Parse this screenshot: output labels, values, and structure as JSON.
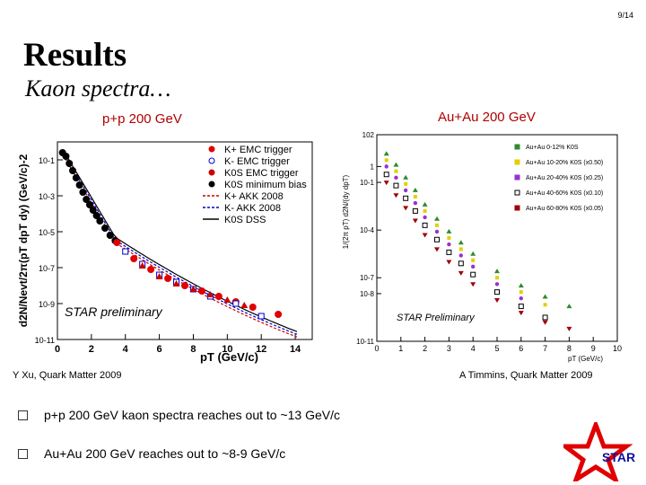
{
  "slide": {
    "page": "9/14",
    "title": "Results",
    "subtitle": "Kaon spectra…",
    "left_plot_title": "p+p 200 GeV",
    "right_plot_title": "Au+Au 200 GeV",
    "left_citation": "Y Xu, Quark Matter 2009",
    "right_citation": "A Timmins, Quark Matter 2009",
    "bullets": [
      "p+p 200 GeV kaon spectra reaches out to ~13 GeV/c",
      "Au+Au 200 GeV reaches out to ~8-9 GeV/c"
    ],
    "logo_text": "STAR"
  },
  "chart_data": [
    {
      "type": "scatter",
      "title": "p+p 200 GeV",
      "xlabel": "pT (GeV/c)",
      "ylabel": "d2N/Nevt/2π(pT dpT dy) (GeV/c)-2",
      "xlim": [
        0,
        15
      ],
      "ylim_log10": [
        -11,
        0
      ],
      "xticks": [
        "0",
        "2",
        "4",
        "6",
        "8",
        "10",
        "12",
        "14"
      ],
      "yticks": [
        "10-11",
        "10-9",
        "10-7",
        "10-5",
        "10-3",
        "10-1"
      ],
      "annotation": "STAR preliminary",
      "legend": [
        "K+ EMC trigger",
        "K- EMC trigger",
        "K0S EMC trigger",
        "K0S minimum bias",
        "K+ AKK 2008",
        "K- AKK 2008",
        "K0S DSS"
      ],
      "series": [
        {
          "name": "K0S minimum bias",
          "x": [
            0.3,
            0.5,
            0.7,
            0.9,
            1.1,
            1.3,
            1.5,
            1.7,
            1.9,
            2.1,
            2.3,
            2.5,
            2.8,
            3.1,
            3.4
          ],
          "log10y": [
            -0.6,
            -0.8,
            -1.2,
            -1.6,
            -2.0,
            -2.4,
            -2.8,
            -3.2,
            -3.5,
            -3.8,
            -4.1,
            -4.4,
            -4.8,
            -5.2,
            -5.5
          ]
        },
        {
          "name": "K+ EMC trigger",
          "x": [
            3.5,
            4.5,
            5.5,
            6.5,
            7.5,
            8.5,
            9.5,
            10.5,
            11.5,
            13.0
          ],
          "log10y": [
            -5.6,
            -6.5,
            -7.1,
            -7.6,
            -8.0,
            -8.3,
            -8.6,
            -8.9,
            -9.2,
            -9.6
          ]
        },
        {
          "name": "K- EMC trigger",
          "x": [
            4.0,
            5.0,
            6.0,
            7.0,
            8.0,
            9.0,
            10.5,
            12.0
          ],
          "log10y": [
            -6.1,
            -6.8,
            -7.4,
            -7.8,
            -8.2,
            -8.6,
            -9.0,
            -9.7
          ]
        },
        {
          "name": "K0S EMC trigger",
          "x": [
            5.0,
            6.0,
            7.0,
            8.0,
            9.0,
            10.0,
            11.0
          ],
          "log10y": [
            -6.9,
            -7.5,
            -7.9,
            -8.2,
            -8.5,
            -8.8,
            -9.1
          ]
        }
      ],
      "curves": [
        {
          "name": "K+ AKK 2008",
          "color": "#cc0000"
        },
        {
          "name": "K- AKK 2008",
          "color": "#0000cc"
        },
        {
          "name": "K0S DSS",
          "color": "#000000"
        }
      ]
    },
    {
      "type": "scatter",
      "title": "Au+Au 200 GeV",
      "xlabel": "pT (GeV/c)",
      "ylabel": "1/(2π pT) d2N/(dy dpT)",
      "xlim": [
        0,
        10
      ],
      "ylim_log10": [
        -11,
        2
      ],
      "xticks": [
        "0",
        "1",
        "2",
        "3",
        "4",
        "5",
        "6",
        "7",
        "8",
        "9",
        "10"
      ],
      "yticks": [
        "10-11",
        "10-8",
        "10-7",
        "10-4",
        "10-1",
        "1",
        "102"
      ],
      "annotation": "STAR Preliminary",
      "legend": [
        "Au+Au 0-12% K0S",
        "Au+Au 10-20% K0S (x0.50)",
        "Au+Au 20-40% K0S (x0.25)",
        "Au+Au 40-60% K0S (x0.10)",
        "Au+Au 60-80% K0S (x0.05)"
      ],
      "series": [
        {
          "name": "0-12%",
          "color": "#2e8b2e",
          "x": [
            0.4,
            0.8,
            1.2,
            1.6,
            2.0,
            2.5,
            3.0,
            3.5,
            4.0,
            5.0,
            6.0,
            7.0,
            8.0
          ],
          "log10y": [
            0.8,
            0.1,
            -0.7,
            -1.5,
            -2.4,
            -3.3,
            -4.1,
            -4.8,
            -5.5,
            -6.6,
            -7.5,
            -8.2,
            -8.8
          ]
        },
        {
          "name": "10-20%",
          "color": "#e0d000",
          "x": [
            0.4,
            0.8,
            1.2,
            1.6,
            2.0,
            2.5,
            3.0,
            3.5,
            4.0,
            5.0,
            6.0,
            7.0
          ],
          "log10y": [
            0.4,
            -0.3,
            -1.1,
            -1.9,
            -2.8,
            -3.7,
            -4.5,
            -5.2,
            -5.9,
            -7.0,
            -7.9,
            -8.7
          ]
        },
        {
          "name": "20-40%",
          "color": "#9932cc",
          "x": [
            0.4,
            0.8,
            1.2,
            1.6,
            2.0,
            2.5,
            3.0,
            3.5,
            4.0,
            5.0,
            6.0
          ],
          "log10y": [
            0.0,
            -0.7,
            -1.5,
            -2.3,
            -3.2,
            -4.1,
            -4.9,
            -5.6,
            -6.3,
            -7.4,
            -8.3
          ]
        },
        {
          "name": "40-60%",
          "color": "#000000",
          "x": [
            0.4,
            0.8,
            1.2,
            1.6,
            2.0,
            2.5,
            3.0,
            3.5,
            4.0,
            5.0,
            6.0,
            7.0
          ],
          "log10y": [
            -0.5,
            -1.2,
            -2.0,
            -2.8,
            -3.7,
            -4.6,
            -5.4,
            -6.1,
            -6.8,
            -7.9,
            -8.8,
            -9.5
          ]
        },
        {
          "name": "60-80%",
          "color": "#a00000",
          "x": [
            0.4,
            0.8,
            1.2,
            1.6,
            2.0,
            2.5,
            3.0,
            3.5,
            4.0,
            5.0,
            6.0,
            7.0,
            8.0
          ],
          "log10y": [
            -1.0,
            -1.8,
            -2.6,
            -3.4,
            -4.3,
            -5.2,
            -6.0,
            -6.7,
            -7.4,
            -8.4,
            -9.2,
            -9.8,
            -10.2
          ]
        }
      ]
    }
  ],
  "colors": {
    "plot_title": "#b00000",
    "star_red": "#e00000",
    "star_text": "#1010a0"
  }
}
